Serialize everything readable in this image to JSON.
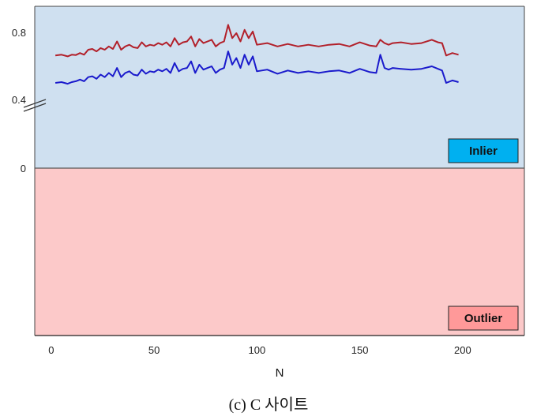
{
  "caption": "(c) C 사이트",
  "chart_data": {
    "type": "line",
    "xlabel": "N",
    "ylabel": "",
    "xlim": [
      -8,
      230
    ],
    "x_ticks": [
      0,
      50,
      100,
      150,
      200
    ],
    "y_ticks": [
      "0.8",
      "0.4",
      "0"
    ],
    "y_axis_break": "between 0.4 and 0",
    "regions": [
      {
        "label": "Inlier",
        "fill": "#cfe0f0",
        "label_fill": "#00b0f0",
        "position": "bottom-right of upper region"
      },
      {
        "label": "Outlier",
        "fill": "#fcc9c9",
        "label_fill": "#ff9999",
        "position": "bottom-right of lower region"
      }
    ],
    "series": [
      {
        "color": "#b2202a",
        "x": [
          2,
          5,
          8,
          10,
          12,
          14,
          16,
          18,
          20,
          22,
          24,
          26,
          28,
          30,
          32,
          34,
          36,
          38,
          40,
          42,
          44,
          46,
          48,
          50,
          52,
          54,
          56,
          58,
          60,
          62,
          64,
          66,
          68,
          70,
          72,
          74,
          76,
          78,
          80,
          82,
          84,
          86,
          88,
          90,
          92,
          94,
          96,
          98,
          100,
          105,
          110,
          115,
          120,
          125,
          130,
          135,
          140,
          145,
          150,
          155,
          158,
          160,
          162,
          164,
          166,
          170,
          175,
          180,
          185,
          188,
          190,
          192,
          195,
          198
        ],
        "y": [
          0.665,
          0.67,
          0.66,
          0.67,
          0.668,
          0.68,
          0.67,
          0.7,
          0.705,
          0.69,
          0.71,
          0.7,
          0.72,
          0.705,
          0.75,
          0.7,
          0.72,
          0.73,
          0.715,
          0.71,
          0.745,
          0.72,
          0.73,
          0.725,
          0.74,
          0.73,
          0.745,
          0.72,
          0.77,
          0.73,
          0.745,
          0.75,
          0.78,
          0.72,
          0.765,
          0.74,
          0.75,
          0.76,
          0.72,
          0.74,
          0.75,
          0.85,
          0.77,
          0.8,
          0.75,
          0.82,
          0.77,
          0.81,
          0.73,
          0.74,
          0.72,
          0.735,
          0.72,
          0.73,
          0.72,
          0.73,
          0.735,
          0.72,
          0.745,
          0.725,
          0.72,
          0.76,
          0.74,
          0.73,
          0.74,
          0.745,
          0.735,
          0.74,
          0.76,
          0.745,
          0.74,
          0.665,
          0.68,
          0.67
        ]
      },
      {
        "color": "#1a1acc",
        "x": [
          2,
          5,
          8,
          10,
          12,
          14,
          16,
          18,
          20,
          22,
          24,
          26,
          28,
          30,
          32,
          34,
          36,
          38,
          40,
          42,
          44,
          46,
          48,
          50,
          52,
          54,
          56,
          58,
          60,
          62,
          64,
          66,
          68,
          70,
          72,
          74,
          76,
          78,
          80,
          82,
          84,
          86,
          88,
          90,
          92,
          94,
          96,
          98,
          100,
          105,
          110,
          115,
          120,
          125,
          130,
          135,
          140,
          145,
          150,
          155,
          158,
          160,
          162,
          164,
          166,
          170,
          175,
          180,
          185,
          188,
          190,
          192,
          195,
          198
        ],
        "y": [
          0.5,
          0.505,
          0.495,
          0.505,
          0.51,
          0.52,
          0.51,
          0.535,
          0.54,
          0.525,
          0.55,
          0.535,
          0.56,
          0.54,
          0.59,
          0.535,
          0.56,
          0.57,
          0.55,
          0.545,
          0.58,
          0.555,
          0.57,
          0.565,
          0.58,
          0.57,
          0.585,
          0.56,
          0.62,
          0.57,
          0.585,
          0.59,
          0.63,
          0.56,
          0.61,
          0.58,
          0.59,
          0.6,
          0.56,
          0.58,
          0.59,
          0.69,
          0.61,
          0.65,
          0.59,
          0.67,
          0.61,
          0.66,
          0.57,
          0.58,
          0.555,
          0.575,
          0.56,
          0.57,
          0.56,
          0.57,
          0.575,
          0.56,
          0.585,
          0.565,
          0.56,
          0.67,
          0.59,
          0.58,
          0.59,
          0.585,
          0.58,
          0.585,
          0.6,
          0.585,
          0.575,
          0.5,
          0.515,
          0.505
        ]
      }
    ]
  }
}
